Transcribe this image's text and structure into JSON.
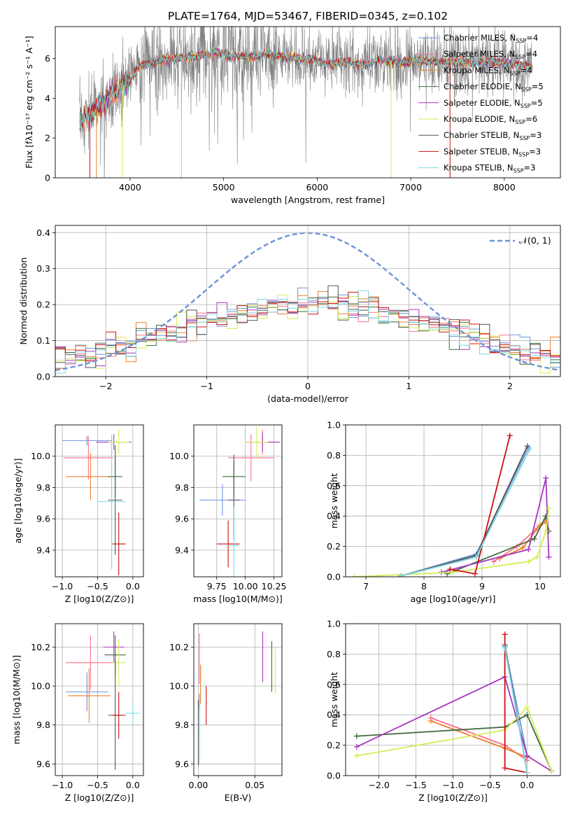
{
  "figure": {
    "title": "PLATE=1764, MJD=53467, FIBERID=0345, z=0.102"
  },
  "colors": {
    "Chabrier MILES": "#6a93d8",
    "Salpeter MILES": "#ff6f8c",
    "Kroupa MILES": "#ef7f2c",
    "Chabrier ELODIE": "#3f6b3f",
    "Salpeter ELODIE": "#a838c0",
    "Kroupa ELODIE": "#d4ec55",
    "Chabrier STELIB": "#555555",
    "Salpeter STELIB": "#cc1111",
    "Kroupa STELIB": "#7fd8e0",
    "data": "#808080",
    "normal": "#6a93d8"
  },
  "chart_data": [
    {
      "id": "spectrum",
      "type": "line",
      "title": "PLATE=1764, MJD=53467, FIBERID=0345, z=0.102",
      "xlabel": "wavelength [Angstrom, rest frame]",
      "ylabel": "Flux [fλ10⁻¹⁷ erg cm⁻² s⁻¹ A⁻¹]",
      "xlim": [
        3200,
        8600
      ],
      "ylim": [
        0,
        7.6
      ],
      "xticks": [
        4000,
        5000,
        6000,
        7000,
        8000
      ],
      "yticks": [
        0,
        2,
        4,
        6
      ],
      "grid": false,
      "legend_position": "right",
      "legend": [
        {
          "name": "Chabrier MILES",
          "sub": "4"
        },
        {
          "name": "Salpeter MILES",
          "sub": "4"
        },
        {
          "name": "Kroupa MILES",
          "sub": "4"
        },
        {
          "name": "Chabrier ELODIE",
          "sub": "5"
        },
        {
          "name": "Salpeter ELODIE",
          "sub": "5"
        },
        {
          "name": "Kroupa ELODIE",
          "sub": "6"
        },
        {
          "name": "Chabrier STELIB",
          "sub": "3"
        },
        {
          "name": "Salpeter STELIB",
          "sub": "3"
        },
        {
          "name": "Kroupa STELIB",
          "sub": "3"
        }
      ],
      "continuum": {
        "x": [
          3460,
          3600,
          3700,
          3800,
          3900,
          4000,
          4100,
          4300,
          4500,
          4700,
          4900,
          5100,
          5300,
          5500,
          5700,
          5900,
          6100,
          6300,
          6500,
          6700,
          6900,
          7100,
          7300,
          7500,
          7700,
          7900,
          8100,
          8300
        ],
        "y": [
          2.8,
          3.3,
          3.7,
          4.2,
          4.5,
          5.0,
          5.6,
          5.9,
          6.0,
          6.1,
          6.3,
          6.1,
          6.1,
          6.2,
          6.0,
          6.0,
          5.7,
          5.8,
          5.7,
          5.9,
          5.8,
          5.9,
          5.8,
          5.8,
          5.8,
          5.8,
          5.7,
          5.6
        ]
      }
    },
    {
      "id": "residuals",
      "type": "line",
      "xlabel": "(data-model)/error",
      "ylabel": "Normed distribution",
      "xlim": [
        -2.5,
        2.5
      ],
      "ylim": [
        0,
        0.42
      ],
      "xticks": [
        -2,
        -1,
        0,
        1,
        2
      ],
      "yticks": [
        0.0,
        0.1,
        0.2,
        0.3,
        0.4
      ],
      "grid": true,
      "legend_position": "top-right",
      "legend": [
        {
          "name": "N(0,1)"
        }
      ]
    },
    {
      "id": "age-vs-Z",
      "type": "scatter",
      "xlabel": "Z [log10(Z/Z⊙)]",
      "ylabel": "age  [log10(age/yr)]",
      "xlim": [
        -1.1,
        0.15
      ],
      "ylim": [
        9.23,
        10.2
      ],
      "xticks": [
        -1.0,
        -0.5,
        0.0
      ],
      "yticks": [
        9.4,
        9.6,
        9.8,
        10.0
      ],
      "grid": true
    },
    {
      "id": "age-vs-mass",
      "type": "scatter",
      "xlabel": "mass [log10(M/M⊙)]",
      "xlim": [
        9.55,
        10.32
      ],
      "ylim": [
        9.23,
        10.2
      ],
      "xticks": [
        9.75,
        10.0,
        10.25
      ],
      "yticks": [
        9.4,
        9.6,
        9.8,
        10.0
      ],
      "grid": true
    },
    {
      "id": "weight-vs-age",
      "type": "line",
      "xlabel": "age  [log10(age/yr)]",
      "ylabel": "mass weight",
      "xlim": [
        6.65,
        10.35
      ],
      "ylim": [
        0,
        1.0
      ],
      "xticks": [
        7,
        8,
        9,
        10
      ],
      "yticks": [
        0.0,
        0.2,
        0.4,
        0.6,
        0.8,
        1.0
      ],
      "grid": true,
      "series": [
        {
          "name": "Chabrier MILES",
          "x": [
            7.6,
            8.9,
            9.8
          ],
          "y": [
            0.005,
            0.15,
            0.85
          ]
        },
        {
          "name": "Salpeter MILES",
          "x": [
            9.2,
            9.6,
            9.95,
            10.1
          ],
          "y": [
            0.1,
            0.2,
            0.32,
            0.38
          ]
        },
        {
          "name": "Kroupa MILES",
          "x": [
            9.3,
            9.7,
            10.0,
            10.1
          ],
          "y": [
            0.12,
            0.19,
            0.34,
            0.36
          ]
        },
        {
          "name": "Chabrier ELODIE",
          "x": [
            8.4,
            9.9,
            10.1,
            10.15
          ],
          "y": [
            0.02,
            0.25,
            0.4,
            0.3
          ]
        },
        {
          "name": "Salpeter ELODIE",
          "x": [
            8.3,
            9.8,
            10.1,
            10.15
          ],
          "y": [
            0.03,
            0.18,
            0.65,
            0.13
          ]
        },
        {
          "name": "Kroupa ELODIE",
          "x": [
            6.8,
            8.5,
            9.8,
            9.95,
            10.1,
            10.15
          ],
          "y": [
            0.0,
            0.03,
            0.1,
            0.13,
            0.3,
            0.45
          ]
        },
        {
          "name": "Chabrier STELIB",
          "x": [
            7.6,
            8.9,
            9.78
          ],
          "y": [
            0.005,
            0.14,
            0.86
          ]
        },
        {
          "name": "Salpeter STELIB",
          "x": [
            8.45,
            8.88,
            9.48
          ],
          "y": [
            0.05,
            0.02,
            0.93
          ]
        },
        {
          "name": "Kroupa STELIB",
          "x": [
            7.6,
            8.9,
            9.82
          ],
          "y": [
            0.005,
            0.13,
            0.84
          ]
        }
      ]
    },
    {
      "id": "mass-vs-Z",
      "type": "scatter",
      "xlabel": "Z [log10(Z/Z⊙)]",
      "ylabel": "mass [log10(M/M⊙)]",
      "xlim": [
        -1.1,
        0.15
      ],
      "ylim": [
        9.54,
        10.32
      ],
      "xticks": [
        -1.0,
        -0.5,
        0.0
      ],
      "yticks": [
        9.6,
        9.8,
        10.0,
        10.2
      ],
      "grid": true
    },
    {
      "id": "mass-vs-EBV",
      "type": "scatter",
      "xlabel": "E(B-V)",
      "xlim": [
        -0.004,
        0.074
      ],
      "ylim": [
        9.54,
        10.32
      ],
      "xticks": [
        0.0,
        0.05
      ],
      "yticks": [
        9.6,
        9.8,
        10.0,
        10.2
      ],
      "grid": true
    },
    {
      "id": "weight-vs-Z",
      "type": "line",
      "xlabel": "Z [log10(Z/Z⊙)]",
      "ylabel": "mass weight",
      "xlim": [
        -2.45,
        0.45
      ],
      "ylim": [
        0,
        1.0
      ],
      "xticks": [
        -2.0,
        -1.5,
        -1.0,
        -0.5,
        0.0
      ],
      "yticks": [
        0.0,
        0.2,
        0.4,
        0.6,
        0.8,
        1.0
      ],
      "grid": true,
      "series": [
        {
          "name": "Chabrier MILES",
          "x": [
            -0.3,
            0.0
          ],
          "y": [
            0.85,
            0.13
          ]
        },
        {
          "name": "Salpeter MILES",
          "x": [
            -1.3,
            -0.3,
            0.0
          ],
          "y": [
            0.38,
            0.2,
            0.1
          ]
        },
        {
          "name": "Kroupa MILES",
          "x": [
            -1.3,
            -0.3,
            0.0
          ],
          "y": [
            0.36,
            0.18,
            0.12
          ]
        },
        {
          "name": "Chabrier ELODIE",
          "x": [
            -2.3,
            -0.3,
            0.0,
            0.33
          ],
          "y": [
            0.26,
            0.32,
            0.4,
            0.03
          ]
        },
        {
          "name": "Salpeter ELODIE",
          "x": [
            -2.3,
            -0.3,
            0.0,
            0.33
          ],
          "y": [
            0.19,
            0.65,
            0.13,
            0.03
          ]
        },
        {
          "name": "Kroupa ELODIE",
          "x": [
            -2.3,
            -0.3,
            0.0,
            0.33
          ],
          "y": [
            0.13,
            0.3,
            0.45,
            0.03
          ]
        },
        {
          "name": "Chabrier STELIB",
          "x": [
            -0.3,
            0.0
          ],
          "y": [
            0.86,
            0.02
          ]
        },
        {
          "name": "Salpeter STELIB",
          "x": [
            -0.3,
            -0.3,
            0.0
          ],
          "y": [
            0.93,
            0.05,
            0.02
          ]
        },
        {
          "name": "Kroupa STELIB",
          "x": [
            -0.3,
            0.0
          ],
          "y": [
            0.84,
            0.02
          ]
        }
      ]
    }
  ]
}
